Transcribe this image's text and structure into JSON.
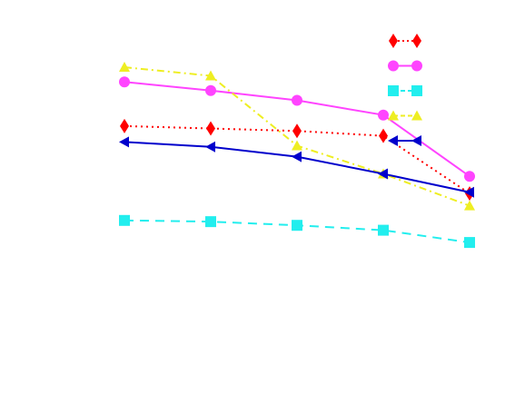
{
  "chart_data": {
    "type": "line",
    "title": "",
    "xlabel": "",
    "ylabel": "",
    "x": [
      1,
      2,
      3,
      4,
      5
    ],
    "xlim": [
      1,
      5
    ],
    "ylim": [
      0,
      1
    ],
    "grid": false,
    "axes_visible": false,
    "legend_position": "top-right",
    "series": [
      {
        "key": "red",
        "color": "#ff0000",
        "line_style": "dotted",
        "marker": "diamond",
        "values": [
          0.745,
          0.735,
          0.725,
          0.705,
          0.47
        ]
      },
      {
        "key": "magenta",
        "color": "#ff44ff",
        "line_style": "solid",
        "marker": "circle",
        "values": [
          0.925,
          0.89,
          0.85,
          0.79,
          0.54
        ]
      },
      {
        "key": "cyan",
        "color": "#22eeee",
        "line_style": "dashed",
        "marker": "square",
        "values": [
          0.36,
          0.355,
          0.34,
          0.32,
          0.27
        ]
      },
      {
        "key": "yellow",
        "color": "#eeee22",
        "line_style": "dashdot",
        "marker": "triangle-up",
        "values": [
          0.985,
          0.95,
          0.665,
          0.55,
          0.42
        ]
      },
      {
        "key": "blue",
        "color": "#0000cc",
        "line_style": "solid",
        "marker": "triangle-left",
        "values": [
          0.68,
          0.66,
          0.62,
          0.55,
          0.475
        ]
      }
    ]
  }
}
